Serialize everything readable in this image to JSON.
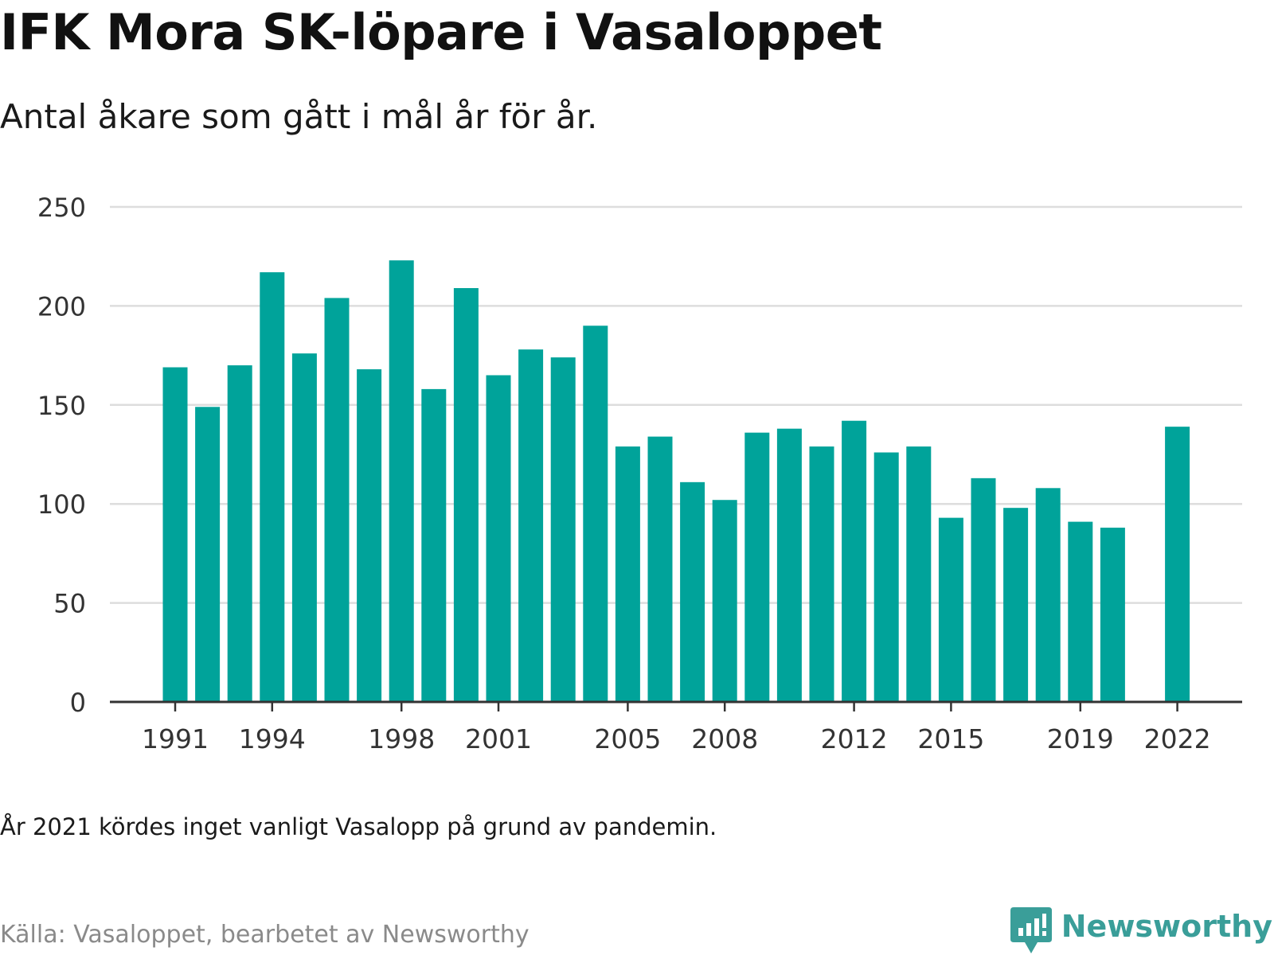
{
  "title": "IFK Mora SK-löpare i Vasaloppet",
  "subtitle": "Antal åkare som gått i mål år för år.",
  "note": "År 2021 kördes inget vanligt Vasalopp på grund av pandemin.",
  "source": "Källa: Vasaloppet, bearbetet av Newsworthy",
  "brand": {
    "name": "Newsworthy",
    "icon": "newsworthy-logo-icon",
    "color": "#3a9e99"
  },
  "chart_data": {
    "type": "bar",
    "title": "IFK Mora SK-löpare i Vasaloppet",
    "subtitle": "Antal åkare som gått i mål år för år.",
    "bar_color": "#00a39a",
    "grid": true,
    "ylim": [
      0,
      250
    ],
    "y_ticks": [
      0,
      50,
      100,
      150,
      200,
      250
    ],
    "x_tick_labels": [
      "1991",
      "1994",
      "1998",
      "2001",
      "2005",
      "2008",
      "2012",
      "2015",
      "2019",
      "2022"
    ],
    "categories": [
      "1991",
      "1992",
      "1993",
      "1994",
      "1995",
      "1996",
      "1997",
      "1998",
      "1999",
      "2000",
      "2001",
      "2002",
      "2003",
      "2004",
      "2005",
      "2006",
      "2007",
      "2008",
      "2009",
      "2010",
      "2011",
      "2012",
      "2013",
      "2014",
      "2015",
      "2016",
      "2017",
      "2018",
      "2019",
      "2020",
      "2021",
      "2022"
    ],
    "values": [
      169,
      149,
      170,
      217,
      176,
      204,
      168,
      223,
      158,
      209,
      165,
      178,
      174,
      190,
      129,
      134,
      111,
      102,
      136,
      138,
      129,
      142,
      126,
      129,
      93,
      113,
      98,
      108,
      91,
      88,
      null,
      139
    ]
  }
}
